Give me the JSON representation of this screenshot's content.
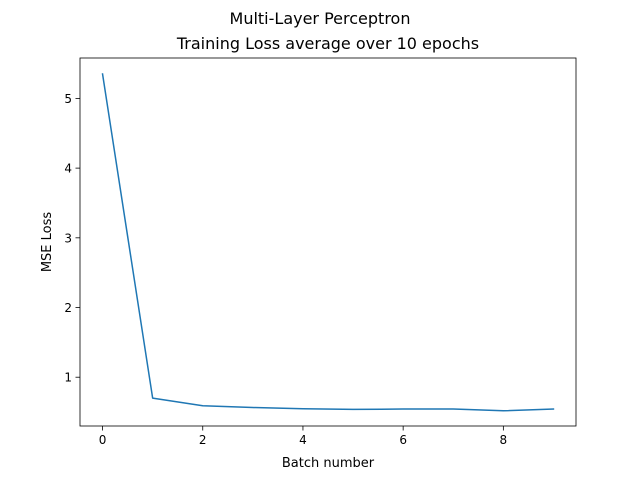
{
  "chart_data": {
    "type": "line",
    "suptitle": "Multi-Layer Perceptron",
    "title": "Training Loss average over 10 epochs",
    "xlabel": "Batch number",
    "ylabel": "MSE Loss",
    "xlim": [
      -0.45,
      9.45
    ],
    "ylim": [
      0.3,
      5.58
    ],
    "xticks": [
      0,
      2,
      4,
      6,
      8
    ],
    "yticks": [
      1,
      2,
      3,
      4,
      5
    ],
    "grid": false,
    "legend": "none",
    "series": [
      {
        "color": "#1f77b4",
        "x": [
          0,
          1,
          2,
          3,
          4,
          5,
          6,
          7,
          8,
          9
        ],
        "y": [
          5.35,
          0.7,
          0.59,
          0.565,
          0.548,
          0.538,
          0.543,
          0.543,
          0.518,
          0.543
        ]
      }
    ]
  }
}
